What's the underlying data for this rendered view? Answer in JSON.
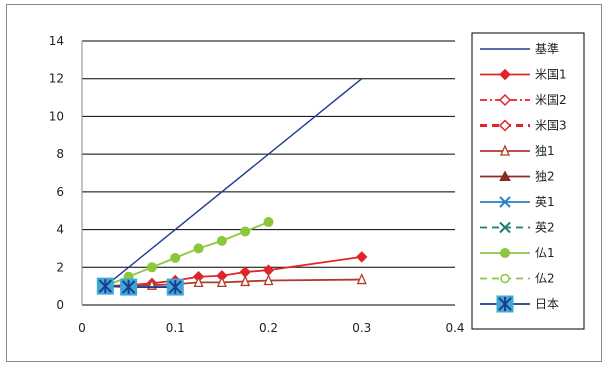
{
  "chart_data": {
    "type": "line",
    "title": "",
    "xlabel": "",
    "ylabel": "",
    "xlim": [
      0,
      0.4
    ],
    "ylim": [
      0,
      14
    ],
    "x_ticks": [
      0,
      0.1,
      0.2,
      0.3,
      0.4
    ],
    "x_tick_labels": [
      "0",
      "0.1",
      "0.2",
      "0.3",
      "0.4"
    ],
    "y_ticks": [
      0,
      2,
      4,
      6,
      8,
      10,
      12,
      14
    ],
    "y_tick_labels": [
      "0",
      "2",
      "4",
      "6",
      "8",
      "10",
      "12",
      "14"
    ],
    "grid": "horizontal",
    "legend_position": "right",
    "series": [
      {
        "name": "基準",
        "color": "#1f3a93",
        "marker": "none",
        "dash": "solid",
        "x": [
          0.025,
          0.3
        ],
        "y": [
          1,
          12
        ]
      },
      {
        "name": "米国1",
        "color": "#e0262a",
        "marker": "diamond",
        "dash": "solid",
        "x": [
          0.025,
          0.05,
          0.075,
          0.1,
          0.125,
          0.15,
          0.175,
          0.2,
          0.3
        ],
        "y": [
          1,
          1.05,
          1.15,
          1.3,
          1.5,
          1.55,
          1.75,
          1.85,
          2.55
        ]
      },
      {
        "name": "米国2",
        "color": "#e0262a",
        "marker": "open-diamond",
        "dash": "dashdot",
        "x": [],
        "y": []
      },
      {
        "name": "米国3",
        "color": "#e0262a",
        "marker": "open-diamond",
        "dash": "dash",
        "x": [],
        "y": []
      },
      {
        "name": "独1",
        "color": "#b33a2a",
        "marker": "open-triangle",
        "dash": "solid",
        "x": [
          0.025,
          0.05,
          0.075,
          0.1,
          0.125,
          0.15,
          0.175,
          0.2,
          0.3
        ],
        "y": [
          1,
          1.05,
          1.05,
          1.1,
          1.2,
          1.2,
          1.25,
          1.3,
          1.35
        ]
      },
      {
        "name": "独2",
        "color": "#8b2b22",
        "marker": "triangle",
        "dash": "solid",
        "x": [],
        "y": []
      },
      {
        "name": "英1",
        "color": "#2a7fc2",
        "marker": "x",
        "dash": "solid",
        "x": [],
        "y": []
      },
      {
        "name": "英2",
        "color": "#1f7a75",
        "marker": "x",
        "dash": "dash",
        "x": [],
        "y": []
      },
      {
        "name": "仏1",
        "color": "#8cc63f",
        "marker": "circle",
        "dash": "solid",
        "x": [
          0.025,
          0.05,
          0.075,
          0.1,
          0.125,
          0.15,
          0.175,
          0.2
        ],
        "y": [
          1,
          1.5,
          2,
          2.5,
          3,
          3.4,
          3.9,
          4.4
        ]
      },
      {
        "name": "仏2",
        "color": "#8cc63f",
        "marker": "open-circle",
        "dash": "dash",
        "x": [],
        "y": []
      },
      {
        "name": "日本",
        "color": "#1f3a93",
        "marker": "star-square",
        "dash": "solid",
        "x": [
          0.025,
          0.05,
          0.1
        ],
        "y": [
          1,
          0.95,
          0.95
        ]
      }
    ]
  },
  "colors": {
    "grid": "#000000",
    "axis": "#888888",
    "marker_box": "#3fa9d6"
  }
}
